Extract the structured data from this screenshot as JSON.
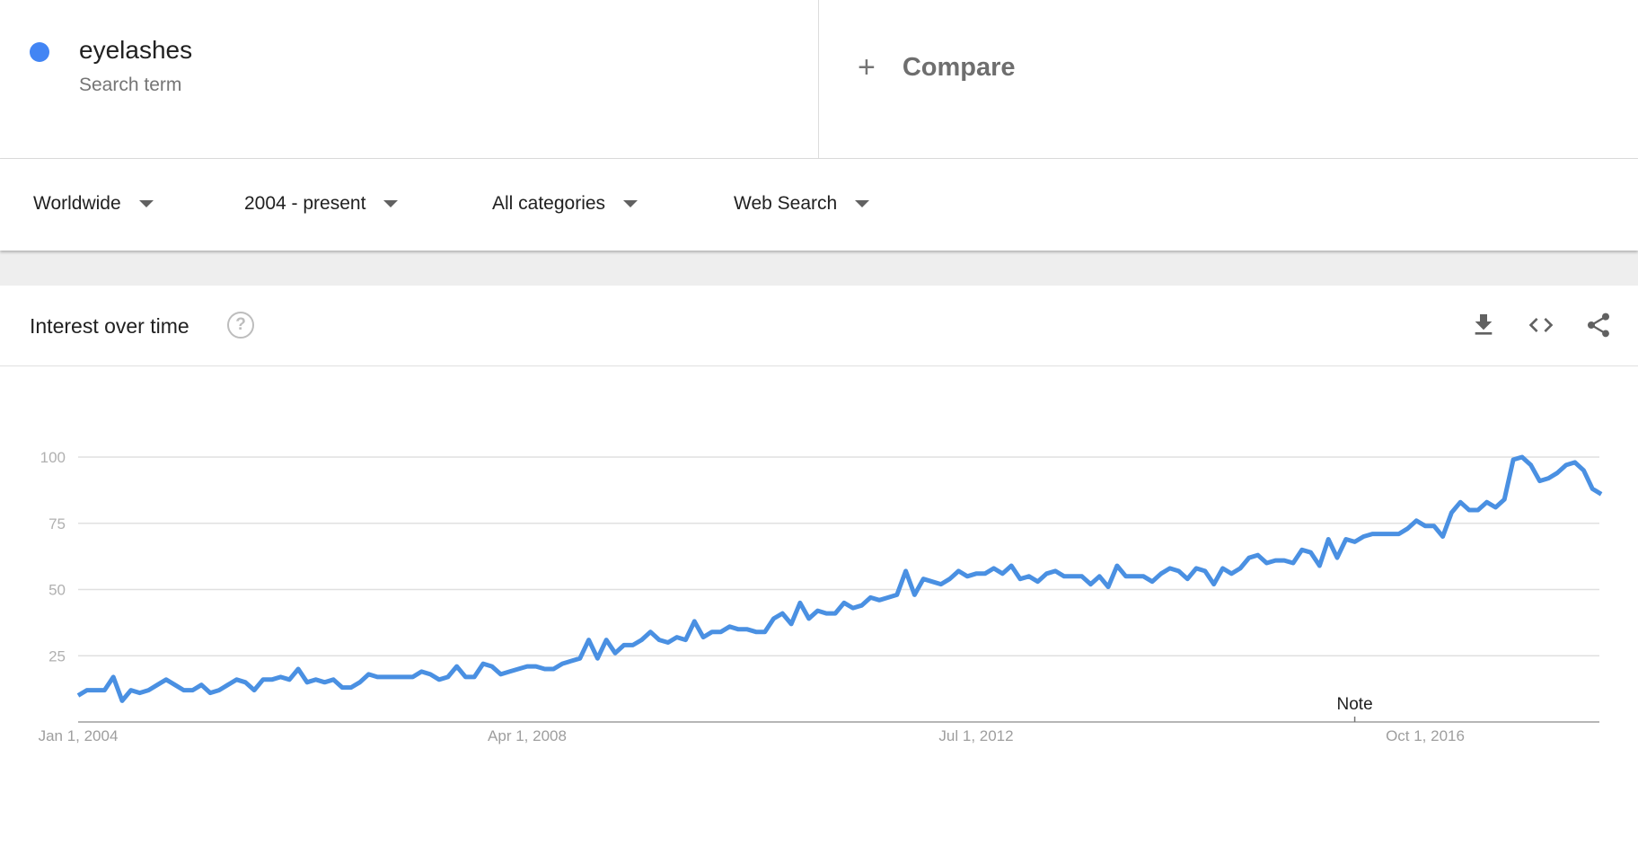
{
  "search_term": {
    "name": "eyelashes",
    "type": "Search term",
    "color": "#4285f4"
  },
  "compare": {
    "icon": "plus-icon",
    "label": "Compare"
  },
  "filters": [
    {
      "label": "Worldwide"
    },
    {
      "label": "2004 - present"
    },
    {
      "label": "All categories"
    },
    {
      "label": "Web Search"
    }
  ],
  "card": {
    "title": "Interest over time",
    "help_icon": "help-circle-icon",
    "help_glyph": "?",
    "actions": [
      "download-icon",
      "embed-code-icon",
      "share-icon"
    ]
  },
  "chart_data": {
    "type": "line",
    "title": "",
    "xlabel": "",
    "ylabel": "",
    "frequency": "monthly",
    "ylim": [
      0,
      100
    ],
    "yticks": [
      25,
      50,
      75,
      100
    ],
    "xticks": [
      "Jan 1, 2004",
      "Apr 1, 2008",
      "Jul 1, 2012",
      "Oct 1, 2016"
    ],
    "grid": true,
    "line_color": "#4a90e2",
    "annotation": {
      "label": "Note",
      "date": "Feb 2016"
    },
    "series": [
      {
        "name": "eyelashes",
        "values_by_year": {
          "2004": [
            10,
            12,
            12,
            12,
            17,
            8,
            12,
            11,
            12,
            14,
            16,
            14
          ],
          "2005": [
            12,
            12,
            14,
            11,
            12,
            14,
            16,
            15,
            12,
            16,
            16,
            17
          ],
          "2006": [
            16,
            20,
            15,
            16,
            15,
            16,
            13,
            13,
            15,
            18,
            17,
            17
          ],
          "2007": [
            17,
            17,
            17,
            19,
            18,
            16,
            17,
            21,
            17,
            17,
            22,
            21
          ],
          "2008": [
            18,
            19,
            20,
            21,
            21,
            20,
            20,
            22,
            23,
            24,
            31,
            24
          ],
          "2009": [
            31,
            26,
            29,
            29,
            31,
            34,
            31,
            30,
            32,
            31,
            38,
            32
          ],
          "2010": [
            34,
            34,
            36,
            35,
            35,
            34,
            34,
            39,
            41,
            37,
            45,
            39
          ],
          "2011": [
            42,
            41,
            41,
            45,
            43,
            44,
            47,
            46,
            47,
            48,
            57,
            48
          ],
          "2012": [
            54,
            53,
            52,
            54,
            57,
            55,
            56,
            56,
            58,
            56,
            59,
            54
          ],
          "2013": [
            55,
            53,
            56,
            57,
            55,
            55,
            55,
            52,
            55,
            51,
            59,
            55
          ],
          "2014": [
            55,
            55,
            53,
            56,
            58,
            57,
            54,
            58,
            57,
            52,
            58,
            56
          ],
          "2015": [
            58,
            62,
            63,
            60,
            61,
            61,
            60,
            65,
            64,
            59,
            69,
            62
          ],
          "2016": [
            69,
            68,
            70,
            71,
            71,
            71,
            71,
            73,
            76,
            74,
            74,
            70
          ],
          "2017": [
            79,
            83,
            80,
            80,
            83,
            81,
            84,
            99,
            100,
            97,
            91,
            92
          ],
          "2018": [
            94,
            97,
            98,
            95,
            88,
            86
          ]
        }
      }
    ]
  }
}
